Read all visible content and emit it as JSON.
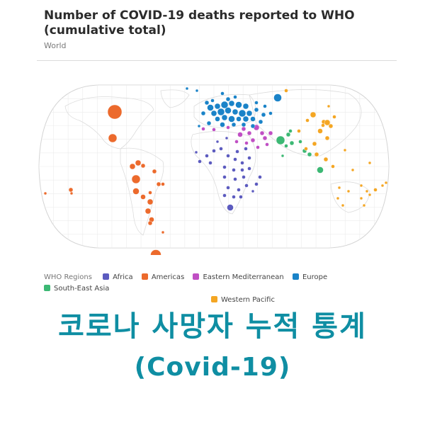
{
  "chart": {
    "title": "Number of COVID-19 deaths reported to WHO (cumulative total)",
    "subtitle": "World"
  },
  "legend": {
    "title": "WHO Regions",
    "items": [
      {
        "key": "africa",
        "label": "Africa",
        "color": "#5c5bbf"
      },
      {
        "key": "americas",
        "label": "Americas",
        "color": "#ec6a2c"
      },
      {
        "key": "emr",
        "label": "Eastern Mediterranean",
        "color": "#c04fc4"
      },
      {
        "key": "europe",
        "label": "Europe",
        "color": "#1a83c8"
      },
      {
        "key": "sear",
        "label": "South-East Asia",
        "color": "#3cb874"
      },
      {
        "key": "wpr",
        "label": "Western Pacific",
        "color": "#f4a623"
      }
    ]
  },
  "caption": {
    "line1": "코로나 사망자 누적 통계",
    "line2": "(Covid-19)"
  }
}
